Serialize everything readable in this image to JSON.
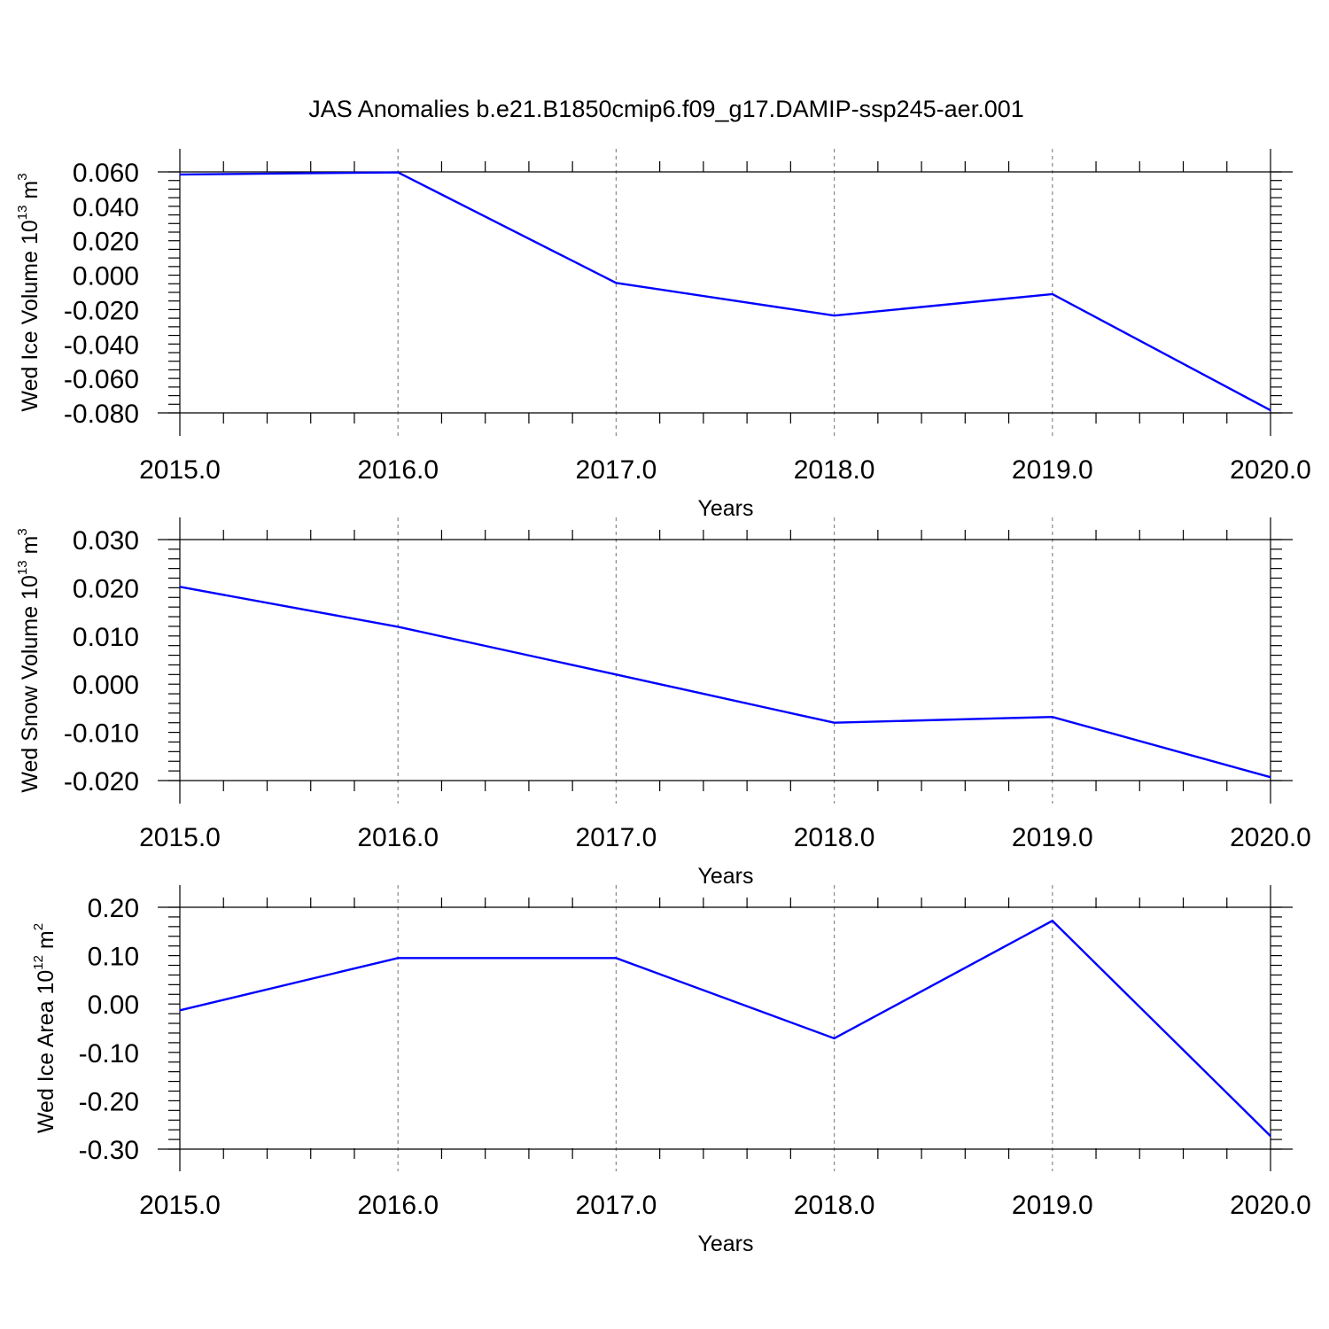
{
  "title": "JAS Anomalies b.e21.B1850cmip6.f09_g17.DAMIP-ssp245-aer.001",
  "chart_data": [
    {
      "type": "line",
      "ylabel": {
        "text": "Wed Ice Volume 10",
        "sup": "13",
        "unit": " m",
        "unit_sup": "3"
      },
      "xlabel": "Years",
      "x": [
        2015,
        2016,
        2017,
        2018,
        2019,
        2020
      ],
      "xlim": [
        2015,
        2020
      ],
      "xticks": [
        2015,
        2016,
        2017,
        2018,
        2019,
        2020
      ],
      "xtick_labels": [
        "2015.0",
        "2016.0",
        "2017.0",
        "2018.0",
        "2019.0",
        "2020.0"
      ],
      "ylim": [
        -0.08,
        0.06
      ],
      "yticks": [
        0.06,
        0.04,
        0.02,
        0.0,
        -0.02,
        -0.04,
        -0.06,
        -0.08
      ],
      "ytick_labels": [
        "0.060",
        "0.040",
        "0.020",
        "0.000",
        "-0.020",
        "-0.040",
        "-0.060",
        "-0.080"
      ],
      "series": [
        {
          "values": [
            0.0585,
            0.0597,
            -0.0045,
            -0.0235,
            -0.011,
            -0.0785
          ],
          "color": "#0000ff"
        }
      ],
      "grid": "vertical dashed at major x ticks"
    },
    {
      "type": "line",
      "ylabel": {
        "text": "Wed Snow Volume 10",
        "sup": "13",
        "unit": " m",
        "unit_sup": "3"
      },
      "xlabel": "Years",
      "x": [
        2015,
        2016,
        2017,
        2018,
        2019,
        2020
      ],
      "xlim": [
        2015,
        2020
      ],
      "xticks": [
        2015,
        2016,
        2017,
        2018,
        2019,
        2020
      ],
      "xtick_labels": [
        "2015.0",
        "2016.0",
        "2017.0",
        "2018.0",
        "2019.0",
        "2020.0"
      ],
      "ylim": [
        -0.02,
        0.03
      ],
      "yticks": [
        0.03,
        0.02,
        0.01,
        0.0,
        -0.01,
        -0.02
      ],
      "ytick_labels": [
        "0.030",
        "0.020",
        "0.010",
        "0.000",
        "-0.010",
        "-0.020"
      ],
      "series": [
        {
          "values": [
            0.0202,
            0.0119,
            0.002,
            -0.008,
            -0.0068,
            -0.0193
          ],
          "color": "#0000ff"
        }
      ],
      "grid": "vertical dashed at major x ticks"
    },
    {
      "type": "line",
      "ylabel": {
        "text": "Wed Ice Area 10",
        "sup": "12",
        "unit": " m",
        "unit_sup": "2"
      },
      "xlabel": "Years",
      "x": [
        2015,
        2016,
        2017,
        2018,
        2019,
        2020
      ],
      "xlim": [
        2015,
        2020
      ],
      "xticks": [
        2015,
        2016,
        2017,
        2018,
        2019,
        2020
      ],
      "xtick_labels": [
        "2015.0",
        "2016.0",
        "2017.0",
        "2018.0",
        "2019.0",
        "2020.0"
      ],
      "ylim": [
        -0.3,
        0.2
      ],
      "yticks": [
        0.2,
        0.1,
        0.0,
        -0.1,
        -0.2,
        -0.3
      ],
      "ytick_labels": [
        "0.20",
        "0.10",
        "0.00",
        "-0.10",
        "-0.20",
        "-0.30"
      ],
      "series": [
        {
          "values": [
            -0.013,
            0.095,
            0.095,
            -0.071,
            0.172,
            -0.273
          ],
          "color": "#0000ff"
        }
      ],
      "grid": "vertical dashed at major x ticks"
    }
  ]
}
